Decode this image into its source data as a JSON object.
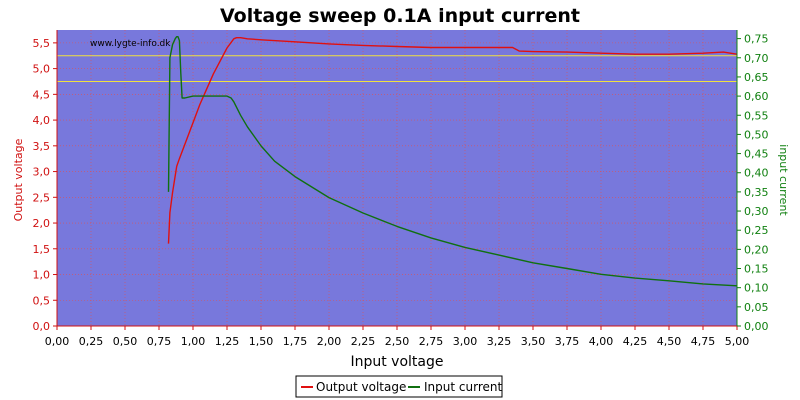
{
  "chart_data": {
    "type": "line",
    "title": "Voltage sweep 0.1A input current",
    "xlabel": "Input voltage",
    "ylabel_left": "Output voltage",
    "ylabel_right": "input current",
    "watermark": "www.lygte-info.dk",
    "xlim": [
      0,
      5
    ],
    "ylim_left": [
      0,
      5.75
    ],
    "ylim_right": [
      0,
      0.7725
    ],
    "x_ticks": [
      "0,00",
      "0,25",
      "0,50",
      "0,75",
      "1,00",
      "1,25",
      "1,50",
      "1,75",
      "2,00",
      "2,25",
      "2,50",
      "2,75",
      "3,00",
      "3,25",
      "3,50",
      "3,75",
      "4,00",
      "4,25",
      "4,50",
      "4,75",
      "5,00"
    ],
    "y_left_ticks": [
      "0,0",
      "0,5",
      "1,0",
      "1,5",
      "2,0",
      "2,5",
      "3,0",
      "3,5",
      "4,0",
      "4,5",
      "5,0",
      "5,5"
    ],
    "y_right_ticks": [
      "0,00",
      "0,05",
      "0,10",
      "0,15",
      "0,20",
      "0,25",
      "0,30",
      "0,35",
      "0,40",
      "0,45",
      "0,50",
      "0,55",
      "0,60",
      "0,65",
      "0,70",
      "0,75"
    ],
    "grid": true,
    "legend_position": "bottom-center",
    "reference_lines_left": [
      5.25,
      4.75
    ],
    "colors": {
      "plot_bg": "#7878dc",
      "grid": "#e05050",
      "output_voltage": "#e01010",
      "input_current": "#107010",
      "reference_line": "#f0e040",
      "left_axis": "#d01010",
      "right_axis": "#108010"
    },
    "series": [
      {
        "name": "Output voltage",
        "axis": "left",
        "x": [
          0.82,
          0.83,
          0.85,
          0.88,
          0.9,
          0.95,
          1.0,
          1.05,
          1.1,
          1.15,
          1.2,
          1.25,
          1.3,
          1.32,
          1.35,
          1.4,
          1.5,
          1.75,
          2.0,
          2.25,
          2.5,
          2.75,
          3.0,
          3.25,
          3.35,
          3.4,
          3.5,
          3.75,
          4.0,
          4.25,
          4.5,
          4.75,
          4.9,
          5.0
        ],
        "y": [
          1.6,
          2.2,
          2.6,
          3.1,
          3.25,
          3.6,
          3.95,
          4.3,
          4.6,
          4.9,
          5.15,
          5.4,
          5.58,
          5.6,
          5.6,
          5.58,
          5.56,
          5.52,
          5.48,
          5.45,
          5.43,
          5.41,
          5.41,
          5.41,
          5.41,
          5.34,
          5.33,
          5.32,
          5.3,
          5.28,
          5.28,
          5.3,
          5.32,
          5.28
        ]
      },
      {
        "name": "Input current",
        "axis": "right",
        "x": [
          0.82,
          0.83,
          0.85,
          0.87,
          0.88,
          0.89,
          0.9,
          0.91,
          0.92,
          0.94,
          1.0,
          1.1,
          1.2,
          1.25,
          1.28,
          1.3,
          1.35,
          1.4,
          1.5,
          1.6,
          1.75,
          2.0,
          2.25,
          2.5,
          2.75,
          3.0,
          3.25,
          3.5,
          3.75,
          4.0,
          4.25,
          4.5,
          4.75,
          5.0
        ],
        "y": [
          0.35,
          0.7,
          0.735,
          0.75,
          0.755,
          0.755,
          0.745,
          0.66,
          0.595,
          0.595,
          0.6,
          0.6,
          0.6,
          0.6,
          0.595,
          0.585,
          0.55,
          0.52,
          0.47,
          0.43,
          0.39,
          0.335,
          0.295,
          0.26,
          0.23,
          0.205,
          0.185,
          0.165,
          0.15,
          0.135,
          0.125,
          0.118,
          0.11,
          0.105
        ]
      }
    ]
  }
}
